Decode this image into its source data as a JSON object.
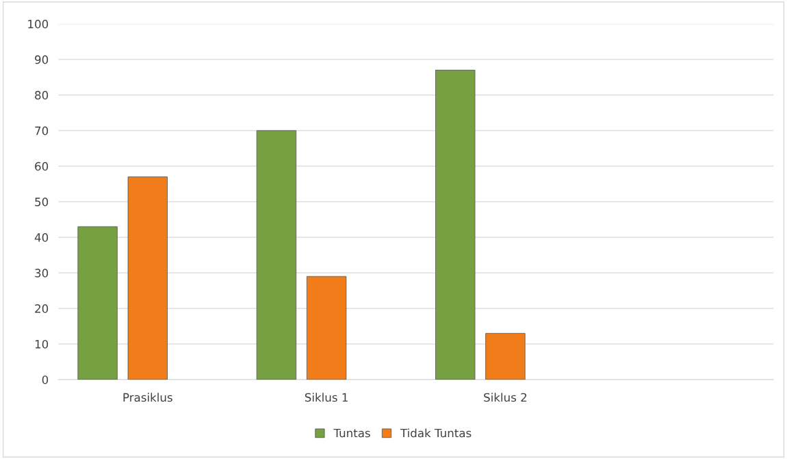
{
  "chart_data": {
    "type": "bar",
    "categories": [
      "Prasiklus",
      "Siklus 1",
      "Siklus 2",
      null
    ],
    "series": [
      {
        "name": "Tuntas",
        "color": "#77a043",
        "values": [
          43,
          70,
          87,
          null
        ]
      },
      {
        "name": "Tidak Tuntas",
        "color": "#f07c1a",
        "values": [
          57,
          29,
          13,
          null
        ]
      }
    ],
    "ylim": [
      0,
      100
    ],
    "yticks": [
      0,
      10,
      20,
      30,
      40,
      50,
      60,
      70,
      80,
      90,
      100
    ],
    "grid": "y",
    "legend": "bottom"
  }
}
